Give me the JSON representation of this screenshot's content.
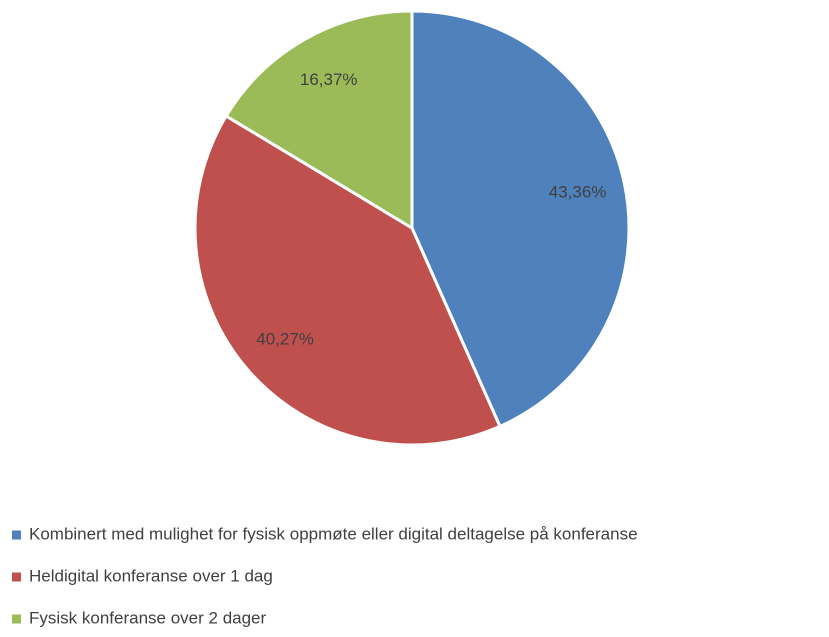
{
  "chart_data": {
    "type": "pie",
    "categories": [
      "Kombinert med mulighet for fysisk oppmøte eller digital deltagelse på konferanse",
      "Heldigital konferanse over 1 dag",
      "Fysisk konferanse over 2 dager"
    ],
    "values": [
      43.36,
      40.27,
      16.37
    ],
    "value_labels": [
      "43,36%",
      "40,27%",
      "16,37%"
    ],
    "colors": [
      "#4f81bd",
      "#c0504d",
      "#9bbb59"
    ],
    "legend": "bottom"
  }
}
